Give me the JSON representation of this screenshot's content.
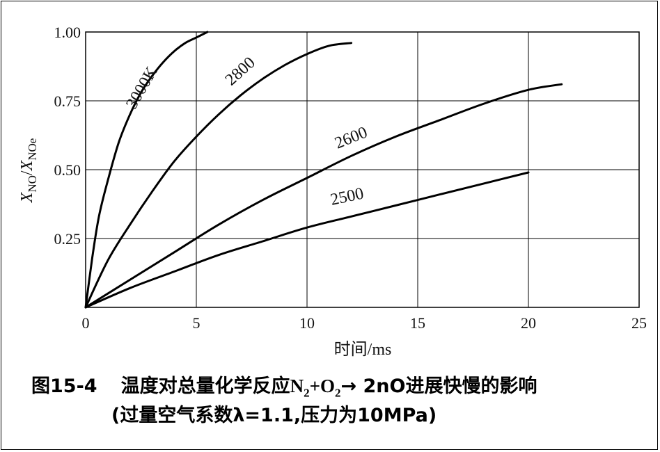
{
  "chart_data": {
    "type": "line",
    "xlim": [
      0,
      25
    ],
    "ylim": [
      0,
      1
    ],
    "grid": true,
    "x_ticks": [
      "0",
      "5",
      "10",
      "15",
      "20",
      "25"
    ],
    "x_tick_values": [
      0,
      5,
      10,
      15,
      20,
      25
    ],
    "y_ticks": [
      "0.25",
      "0.50",
      "0.75",
      "1.00"
    ],
    "y_tick_values": [
      0.25,
      0.5,
      0.75,
      1.0
    ],
    "xlabel": "时间/ms",
    "ylabel_main": "X",
    "ylabel_sub": "NO",
    "ylabel_slash": "/",
    "ylabel_main2": "X",
    "ylabel_sub2": "NOe",
    "series": [
      {
        "name": "3000K",
        "x": [
          0,
          0.3,
          0.6,
          1,
          1.5,
          2,
          2.5,
          3,
          3.5,
          4,
          4.5,
          5,
          5.5
        ],
        "y": [
          0,
          0.18,
          0.33,
          0.46,
          0.6,
          0.7,
          0.78,
          0.84,
          0.89,
          0.93,
          0.96,
          0.98,
          1.0
        ]
      },
      {
        "name": "2800",
        "x": [
          0,
          1,
          2,
          3,
          4,
          5,
          6,
          7,
          8,
          9,
          10,
          11,
          12
        ],
        "y": [
          0,
          0.17,
          0.3,
          0.42,
          0.53,
          0.62,
          0.7,
          0.77,
          0.83,
          0.88,
          0.92,
          0.95,
          0.96
        ]
      },
      {
        "name": "2600",
        "x": [
          0,
          2,
          4,
          6,
          8,
          10,
          12,
          14,
          16,
          18,
          20,
          21.5
        ],
        "y": [
          0,
          0.1,
          0.2,
          0.3,
          0.39,
          0.47,
          0.55,
          0.62,
          0.68,
          0.74,
          0.79,
          0.81
        ]
      },
      {
        "name": "2500",
        "x": [
          0,
          2,
          4,
          6,
          8,
          10,
          12,
          14,
          16,
          18,
          20
        ],
        "y": [
          0,
          0.07,
          0.13,
          0.19,
          0.24,
          0.29,
          0.33,
          0.37,
          0.41,
          0.45,
          0.49
        ]
      }
    ]
  },
  "caption": {
    "figure_num": "图15-4",
    "line1_text": "温度对总量化学反应",
    "n": "N",
    "n_sub": "2",
    "plus_o": "+O",
    "o_sub": "2",
    "arrow_rest": "→ 2nO进展快慢的影响",
    "line2": "(过量空气系数λ=1.1,压力为10MPa)"
  }
}
